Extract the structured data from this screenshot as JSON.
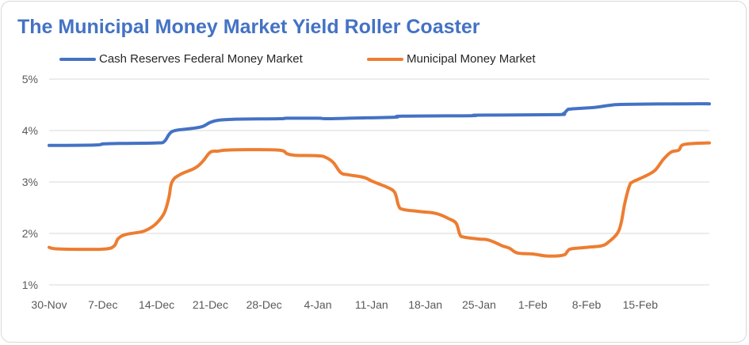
{
  "chart_data": {
    "type": "line",
    "title": "The Municipal Money Market Yield Roller Coaster",
    "xlabel": "",
    "ylabel": "",
    "ylim": [
      1,
      5
    ],
    "yticks": [
      "1%",
      "2%",
      "3%",
      "4%",
      "5%"
    ],
    "xticks": [
      "30-Nov",
      "7-Dec",
      "14-Dec",
      "21-Dec",
      "28-Dec",
      "4-Jan",
      "11-Jan",
      "18-Jan",
      "25-Jan",
      "1-Feb",
      "8-Feb",
      "15-Feb"
    ],
    "x_range_days": [
      0,
      86
    ],
    "series": [
      {
        "name": "Cash Reserves Federal Money Market",
        "color": "#4472c4",
        "points": [
          [
            0,
            3.71
          ],
          [
            6,
            3.72
          ],
          [
            7,
            3.74
          ],
          [
            9,
            3.75
          ],
          [
            14,
            3.76
          ],
          [
            15,
            3.79
          ],
          [
            16,
            3.98
          ],
          [
            18,
            4.03
          ],
          [
            19,
            4.05
          ],
          [
            20,
            4.08
          ],
          [
            21,
            4.16
          ],
          [
            22,
            4.2
          ],
          [
            24,
            4.22
          ],
          [
            30,
            4.23
          ],
          [
            31,
            4.24
          ],
          [
            35,
            4.24
          ],
          [
            36,
            4.23
          ],
          [
            39,
            4.24
          ],
          [
            45,
            4.26
          ],
          [
            46,
            4.28
          ],
          [
            55,
            4.29
          ],
          [
            56,
            4.3
          ],
          [
            66,
            4.31
          ],
          [
            67,
            4.33
          ],
          [
            67.5,
            4.4
          ],
          [
            68,
            4.42
          ],
          [
            71,
            4.45
          ],
          [
            73,
            4.49
          ],
          [
            75,
            4.51
          ],
          [
            83,
            4.52
          ],
          [
            86,
            4.52
          ]
        ]
      },
      {
        "name": "Municipal Money Market",
        "color": "#ed7d31",
        "points": [
          [
            0,
            1.73
          ],
          [
            1,
            1.7
          ],
          [
            5,
            1.69
          ],
          [
            7.5,
            1.7
          ],
          [
            8.5,
            1.76
          ],
          [
            9,
            1.9
          ],
          [
            10,
            1.98
          ],
          [
            12,
            2.03
          ],
          [
            13,
            2.09
          ],
          [
            14,
            2.2
          ],
          [
            15,
            2.4
          ],
          [
            15.6,
            2.7
          ],
          [
            16,
            3.0
          ],
          [
            17,
            3.14
          ],
          [
            19,
            3.27
          ],
          [
            20,
            3.4
          ],
          [
            21,
            3.58
          ],
          [
            22,
            3.6
          ],
          [
            23,
            3.62
          ],
          [
            26,
            3.63
          ],
          [
            30,
            3.62
          ],
          [
            31,
            3.55
          ],
          [
            32,
            3.52
          ],
          [
            35,
            3.51
          ],
          [
            36,
            3.48
          ],
          [
            37,
            3.38
          ],
          [
            38,
            3.18
          ],
          [
            39,
            3.14
          ],
          [
            41,
            3.09
          ],
          [
            42,
            3.02
          ],
          [
            43,
            2.96
          ],
          [
            44,
            2.9
          ],
          [
            45,
            2.8
          ],
          [
            45.5,
            2.55
          ],
          [
            46,
            2.47
          ],
          [
            48,
            2.43
          ],
          [
            50,
            2.4
          ],
          [
            51,
            2.36
          ],
          [
            52,
            2.29
          ],
          [
            53,
            2.2
          ],
          [
            53.5,
            1.98
          ],
          [
            54,
            1.93
          ],
          [
            56,
            1.89
          ],
          [
            57,
            1.88
          ],
          [
            58,
            1.83
          ],
          [
            59,
            1.76
          ],
          [
            60,
            1.71
          ],
          [
            61,
            1.62
          ],
          [
            63,
            1.6
          ],
          [
            65,
            1.56
          ],
          [
            67,
            1.58
          ],
          [
            67.5,
            1.65
          ],
          [
            68,
            1.7
          ],
          [
            70,
            1.73
          ],
          [
            72,
            1.76
          ],
          [
            73,
            1.85
          ],
          [
            74,
            2.0
          ],
          [
            74.5,
            2.2
          ],
          [
            75,
            2.6
          ],
          [
            75.6,
            2.93
          ],
          [
            76,
            3.0
          ],
          [
            77,
            3.07
          ],
          [
            78,
            3.14
          ],
          [
            79,
            3.24
          ],
          [
            80,
            3.44
          ],
          [
            81,
            3.58
          ],
          [
            82,
            3.62
          ],
          [
            82.5,
            3.72
          ],
          [
            84,
            3.75
          ],
          [
            86,
            3.76
          ]
        ]
      }
    ]
  }
}
